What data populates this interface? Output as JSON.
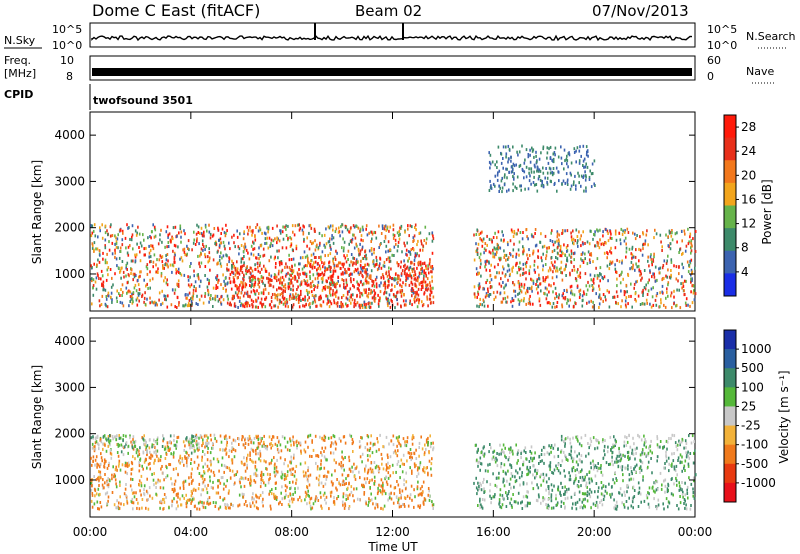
{
  "header": {
    "title": "Dome C East (fitACF)",
    "beam": "Beam 02",
    "date": "07/Nov/2013"
  },
  "ancillary": {
    "nsky_label": "N.Sky",
    "nsky_tick_top": "10^5",
    "nsky_tick_bottom": "10^0",
    "nsearch_label": "N.Search",
    "nsearch_tick_top": "10^5",
    "nsearch_tick_bottom": "10^0",
    "freq_label": "Freq.",
    "freq_unit": "[MHz]",
    "freq_tick_top": "10",
    "freq_tick_bottom": "8",
    "nave_label": "Nave",
    "nave_tick_top": "60",
    "nave_tick_bottom": "0",
    "cpid_label": "CPID",
    "cpid_value": "twofsound 3501"
  },
  "chart_data": [
    {
      "type": "heatmap",
      "name": "power",
      "ylabel": "Slant Range [km]",
      "yticks": [
        "1000",
        "2000",
        "3000",
        "4000"
      ],
      "ylim": [
        200,
        4500
      ],
      "colorbar": {
        "label": "Power [dB]",
        "ticks": [
          "4",
          "8",
          "12",
          "16",
          "20",
          "24",
          "28"
        ],
        "range": [
          0,
          30
        ],
        "colors": [
          "#1a2ee6",
          "#3c63b0",
          "#3d8a6a",
          "#66b34a",
          "#f2a51c",
          "#f2781c",
          "#e8301a",
          "#ff1a0a"
        ]
      },
      "echo_regions": [
        {
          "t_start": 0.0,
          "t_end": 13.6,
          "r_min": 300,
          "r_max": 2100,
          "level": "high",
          "peak_dB": 28
        },
        {
          "t_start": 5.5,
          "t_end": 13.6,
          "r_min": 300,
          "r_max": 1300,
          "level": "strongest",
          "peak_dB": 30
        },
        {
          "t_start": 15.2,
          "t_end": 24.0,
          "r_min": 300,
          "r_max": 2000,
          "level": "high",
          "peak_dB": 28
        },
        {
          "t_start": 15.8,
          "t_end": 20.0,
          "r_min": 2800,
          "r_max": 3800,
          "level": "weak",
          "peak_dB": 8
        }
      ]
    },
    {
      "type": "heatmap",
      "name": "velocity",
      "ylabel": "Slant Range [km]",
      "xlabel": "Time UT",
      "xticks": [
        "00:00",
        "04:00",
        "08:00",
        "12:00",
        "16:00",
        "20:00",
        "00:00"
      ],
      "xlim": [
        0,
        24
      ],
      "yticks": [
        "1000",
        "2000",
        "3000",
        "4000"
      ],
      "ylim": [
        200,
        4500
      ],
      "colorbar": {
        "label": "Velocity [m s⁻¹]",
        "ticks": [
          "1000",
          "500",
          "100",
          "25",
          "-25",
          "-100",
          "-500",
          "-1000"
        ],
        "colors": [
          "#1a2ea8",
          "#2a5fa0",
          "#3d8a6a",
          "#55b83a",
          "#c8c8c8",
          "#f2b23a",
          "#f07a1c",
          "#e83a10",
          "#e8101a"
        ]
      },
      "echo_regions": [
        {
          "t_start": 0.0,
          "t_end": 13.6,
          "r_min": 400,
          "r_max": 2000,
          "dominant_velocity": "-100"
        },
        {
          "t_start": 0.0,
          "t_end": 5.0,
          "r_min": 1600,
          "r_max": 2000,
          "dominant_velocity": "25"
        },
        {
          "t_start": 15.2,
          "t_end": 24.0,
          "r_min": 400,
          "r_max": 1800,
          "dominant_velocity": "100"
        },
        {
          "t_start": 18.5,
          "t_end": 24.0,
          "r_min": 1800,
          "r_max": 2000,
          "dominant_velocity": "25"
        }
      ]
    }
  ]
}
